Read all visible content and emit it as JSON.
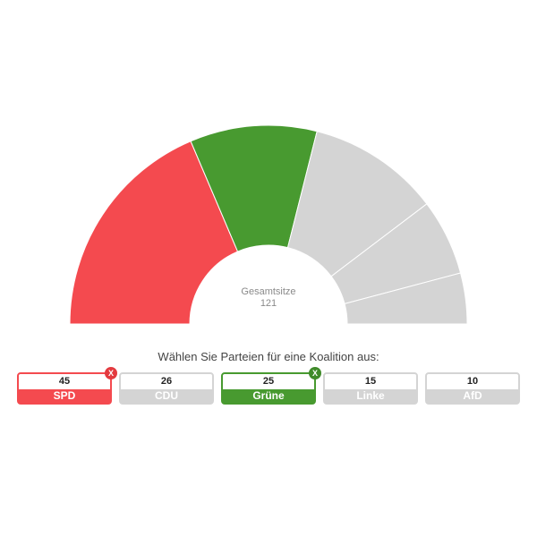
{
  "chart_data": {
    "type": "pie",
    "subtype": "half-donut parliament seat chart",
    "center": {
      "label": "Gesamtsitze",
      "value": 121
    },
    "series": [
      {
        "name": "SPD",
        "value": 45,
        "selected": true,
        "color": "#f44a4f"
      },
      {
        "name": "Grüne",
        "value": 25,
        "selected": true,
        "color": "#489a30"
      },
      {
        "name": "CDU",
        "value": 26,
        "selected": false,
        "color": "#d4d4d4"
      },
      {
        "name": "Linke",
        "value": 15,
        "selected": false,
        "color": "#d4d4d4"
      },
      {
        "name": "AfD",
        "value": 10,
        "selected": false,
        "color": "#d4d4d4"
      }
    ]
  },
  "prompt": "Wählen Sie Parteien für eine Koalition aus:",
  "parties": [
    {
      "name": "SPD",
      "seats": "45",
      "selected": true,
      "color": "#f44a4f",
      "badge_color": "#e33a3f",
      "badge": "X"
    },
    {
      "name": "CDU",
      "seats": "26",
      "selected": false,
      "color": "#d4d4d4"
    },
    {
      "name": "Grüne",
      "seats": "25",
      "selected": true,
      "color": "#489a30",
      "badge_color": "#3f8a2a",
      "badge": "X"
    },
    {
      "name": "Linke",
      "seats": "15",
      "selected": false,
      "color": "#d4d4d4"
    },
    {
      "name": "AfD",
      "seats": "10",
      "selected": false,
      "color": "#d4d4d4"
    }
  ],
  "colors": {
    "unselected": "#d4d4d4",
    "separator": "#ffffff"
  }
}
